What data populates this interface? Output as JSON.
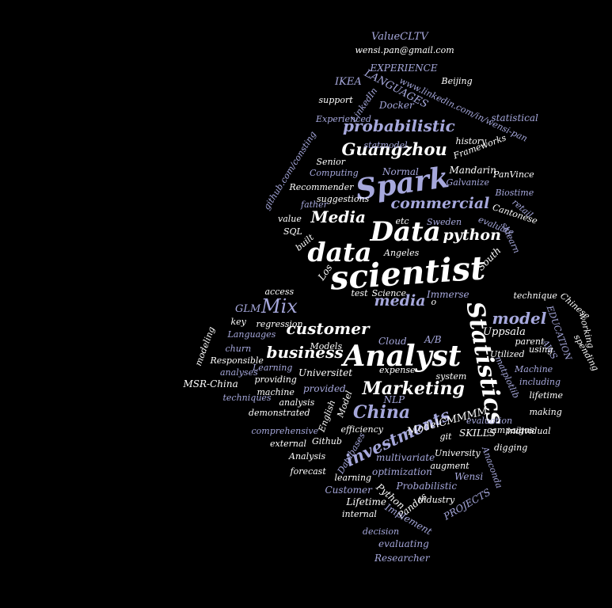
{
  "palette": {
    "background": "#000000",
    "white": "#ffffff",
    "lavender": "#a6a8dc"
  },
  "words": [
    {
      "text": "ValueCLTV",
      "color": "blue"
    },
    {
      "text": "wensi.pan@gmail.com",
      "color": "white"
    },
    {
      "text": "EXPERIENCE",
      "color": "blue"
    },
    {
      "text": "LANGUAGES",
      "color": "blue"
    },
    {
      "text": "IKEA",
      "color": "blue"
    },
    {
      "text": "Beijing",
      "color": "white"
    },
    {
      "text": "www.linkedin.com/in/wensi-pan",
      "color": "blue"
    },
    {
      "text": "support",
      "color": "white"
    },
    {
      "text": "LinkedIn",
      "color": "blue"
    },
    {
      "text": "Docker",
      "color": "blue"
    },
    {
      "text": "statistical",
      "color": "blue"
    },
    {
      "text": "Experienced",
      "color": "blue"
    },
    {
      "text": "probabilistic",
      "color": "blue"
    },
    {
      "text": "history",
      "color": "white"
    },
    {
      "text": "Guangzhou",
      "color": "white"
    },
    {
      "text": "statmodel",
      "color": "blue"
    },
    {
      "text": "Frameworks",
      "color": "white"
    },
    {
      "text": "github.com/consting",
      "color": "blue"
    },
    {
      "text": "Senior",
      "color": "white"
    },
    {
      "text": "Normal",
      "color": "blue"
    },
    {
      "text": "Mandarin",
      "color": "white"
    },
    {
      "text": "Computing",
      "color": "blue"
    },
    {
      "text": "PanVince",
      "color": "white"
    },
    {
      "text": "Spark",
      "color": "blue"
    },
    {
      "text": "Recommender",
      "color": "white"
    },
    {
      "text": "Galvanize",
      "color": "blue"
    },
    {
      "text": "Biostime",
      "color": "blue"
    },
    {
      "text": "suggestions",
      "color": "white"
    },
    {
      "text": "commercial",
      "color": "blue"
    },
    {
      "text": "father",
      "color": "blue"
    },
    {
      "text": "retail",
      "color": "blue"
    },
    {
      "text": "Cantonese",
      "color": "white"
    },
    {
      "text": "Media",
      "color": "white"
    },
    {
      "text": "value",
      "color": "white"
    },
    {
      "text": "etc",
      "color": "white"
    },
    {
      "text": "Sweden",
      "color": "blue"
    },
    {
      "text": "evaluate",
      "color": "blue"
    },
    {
      "text": "SQL",
      "color": "white"
    },
    {
      "text": "Data",
      "color": "white"
    },
    {
      "text": "python",
      "color": "white"
    },
    {
      "text": "built",
      "color": "white"
    },
    {
      "text": "sklearn",
      "color": "blue"
    },
    {
      "text": "data",
      "color": "white"
    },
    {
      "text": "Angeles",
      "color": "white"
    },
    {
      "text": "South",
      "color": "white"
    },
    {
      "text": "Los",
      "color": "white"
    },
    {
      "text": "scientist",
      "color": "white"
    },
    {
      "text": "access",
      "color": "white"
    },
    {
      "text": "Science",
      "color": "white"
    },
    {
      "text": "test",
      "color": "white"
    },
    {
      "text": "Immerse",
      "color": "blue"
    },
    {
      "text": "media",
      "color": "blue"
    },
    {
      "text": "o",
      "color": "white"
    },
    {
      "text": "GLM",
      "color": "blue"
    },
    {
      "text": "Mix",
      "color": "blue"
    },
    {
      "text": "technique",
      "color": "white"
    },
    {
      "text": "Chinese",
      "color": "white"
    },
    {
      "text": "key",
      "color": "white"
    },
    {
      "text": "regression",
      "color": "white"
    },
    {
      "text": "customer",
      "color": "white"
    },
    {
      "text": "model",
      "color": "blue"
    },
    {
      "text": "EDUCATION",
      "color": "blue"
    },
    {
      "text": "working",
      "color": "white"
    },
    {
      "text": "Languages",
      "color": "blue"
    },
    {
      "text": "Statistics",
      "color": "white"
    },
    {
      "text": "Uppsala",
      "color": "white"
    },
    {
      "text": "parent",
      "color": "white"
    },
    {
      "text": "AWS",
      "color": "blue"
    },
    {
      "text": "spending",
      "color": "white"
    },
    {
      "text": "churn",
      "color": "blue"
    },
    {
      "text": "Models",
      "color": "white"
    },
    {
      "text": "Cloud",
      "color": "blue"
    },
    {
      "text": "A/B",
      "color": "blue"
    },
    {
      "text": "Utilized",
      "color": "white"
    },
    {
      "text": "using",
      "color": "white"
    },
    {
      "text": "modeling",
      "color": "white"
    },
    {
      "text": "Responsible",
      "color": "white"
    },
    {
      "text": "business",
      "color": "white"
    },
    {
      "text": "Analyst",
      "color": "white"
    },
    {
      "text": "Learning",
      "color": "blue"
    },
    {
      "text": "Universitet",
      "color": "white"
    },
    {
      "text": "matplotlib",
      "color": "blue"
    },
    {
      "text": "Machine",
      "color": "blue"
    },
    {
      "text": "analyses",
      "color": "blue"
    },
    {
      "text": "providing",
      "color": "white"
    },
    {
      "text": "expense",
      "color": "white"
    },
    {
      "text": "system",
      "color": "white"
    },
    {
      "text": "including",
      "color": "blue"
    },
    {
      "text": "MSR-China",
      "color": "white"
    },
    {
      "text": "machine",
      "color": "white"
    },
    {
      "text": "provided",
      "color": "blue"
    },
    {
      "text": "Marketing",
      "color": "white"
    },
    {
      "text": "lifetime",
      "color": "white"
    },
    {
      "text": "techniques",
      "color": "blue"
    },
    {
      "text": "analysis",
      "color": "white"
    },
    {
      "text": "NLP",
      "color": "blue"
    },
    {
      "text": "making",
      "color": "white"
    },
    {
      "text": "demonstrated",
      "color": "white"
    },
    {
      "text": "China",
      "color": "blue"
    },
    {
      "text": "English",
      "color": "white"
    },
    {
      "text": "Model",
      "color": "white"
    },
    {
      "text": "investments",
      "color": "blue"
    },
    {
      "text": "ModelCMMMM",
      "color": "white"
    },
    {
      "text": "evaluation",
      "color": "blue"
    },
    {
      "text": "comprehensive",
      "color": "blue"
    },
    {
      "text": "efficiency",
      "color": "white"
    },
    {
      "text": "campaigns",
      "color": "white"
    },
    {
      "text": "individual",
      "color": "white"
    },
    {
      "text": "Github",
      "color": "white"
    },
    {
      "text": "git",
      "color": "white"
    },
    {
      "text": "SKILLS",
      "color": "white"
    },
    {
      "text": "external",
      "color": "white"
    },
    {
      "text": "Databases",
      "color": "blue"
    },
    {
      "text": "University",
      "color": "white"
    },
    {
      "text": "digging",
      "color": "white"
    },
    {
      "text": "multivariate",
      "color": "blue"
    },
    {
      "text": "Analysis",
      "color": "white"
    },
    {
      "text": "augment",
      "color": "white"
    },
    {
      "text": "Anaconda",
      "color": "blue"
    },
    {
      "text": "forecast",
      "color": "white"
    },
    {
      "text": "optimization",
      "color": "blue"
    },
    {
      "text": "learning",
      "color": "white"
    },
    {
      "text": "Wensi",
      "color": "blue"
    },
    {
      "text": "Probabilistic",
      "color": "blue"
    },
    {
      "text": "Customer",
      "color": "blue"
    },
    {
      "text": "Python",
      "color": "white"
    },
    {
      "text": "PROJECTS",
      "color": "blue"
    },
    {
      "text": "industry",
      "color": "white"
    },
    {
      "text": "Lifetime",
      "color": "white"
    },
    {
      "text": "Pandas",
      "color": "white"
    },
    {
      "text": "internal",
      "color": "white"
    },
    {
      "text": "Implement",
      "color": "blue"
    },
    {
      "text": "decision",
      "color": "blue"
    },
    {
      "text": "evaluating",
      "color": "blue"
    },
    {
      "text": "Researcher",
      "color": "blue"
    }
  ]
}
